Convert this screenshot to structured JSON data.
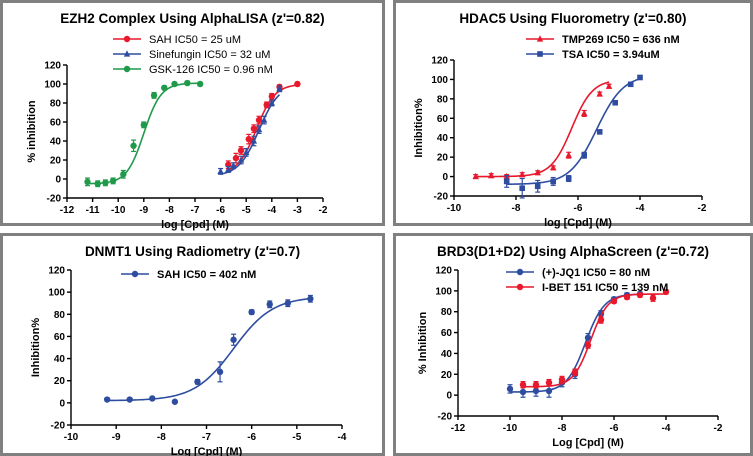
{
  "chart_data": [
    {
      "type": "line",
      "title": "EZH2 Complex Using AlphaLISA (z'=0.82)",
      "xlabel": "log [Cpd] (M)",
      "ylabel": "% inhibition",
      "xlim": [
        -12,
        -2
      ],
      "ylim": [
        -20,
        120
      ],
      "xticks": [
        -12,
        -11,
        -10,
        -9,
        -8,
        -7,
        -6,
        -5,
        -4,
        -3,
        -2
      ],
      "yticks": [
        -20,
        0,
        20,
        40,
        60,
        80,
        100,
        120
      ],
      "legend_bold": false,
      "legend_position": "top",
      "series": [
        {
          "name": "SAH IC50 = 25 uM",
          "color": "#e8192c",
          "marker": "circle",
          "x": [
            -5.7,
            -5.4,
            -5.2,
            -4.9,
            -4.7,
            -4.5,
            -4.2,
            -4.0,
            -3.7,
            -3.0
          ],
          "y": [
            15,
            22,
            30,
            42,
            53,
            62,
            78,
            87,
            97,
            100
          ],
          "err": [
            4,
            5,
            4,
            5,
            4,
            4,
            3,
            3,
            2,
            2
          ],
          "fit": {
            "ic50_log": -4.6,
            "hill": 1.2,
            "bottom": 5,
            "top": 100
          }
        },
        {
          "name": "Sinefungin IC50 = 32 uM",
          "color": "#2e4da0",
          "marker": "triangle",
          "x": [
            -6.0,
            -5.7,
            -5.5,
            -5.2,
            -5.0,
            -4.7,
            -4.5,
            -4.3,
            -4.0,
            -3.7
          ],
          "y": [
            8,
            10,
            14,
            20,
            28,
            40,
            52,
            62,
            80,
            95
          ],
          "err": [
            3,
            3,
            3,
            4,
            4,
            5,
            4,
            4,
            3,
            3
          ],
          "fit": {
            "ic50_log": -4.5,
            "hill": 1.1,
            "bottom": 3,
            "top": 100
          }
        },
        {
          "name": "GSK-126 IC50 = 0.96 nM",
          "color": "#1f9a4a",
          "marker": "circle",
          "x": [
            -11.2,
            -10.8,
            -10.5,
            -10.2,
            -9.8,
            -9.4,
            -9.0,
            -8.6,
            -8.2,
            -7.8,
            -7.3,
            -6.8
          ],
          "y": [
            -3,
            -5,
            -4,
            -2,
            5,
            35,
            57,
            88,
            96,
            100,
            101,
            100
          ],
          "err": [
            4,
            3,
            3,
            3,
            4,
            6,
            3,
            3,
            2,
            2,
            2,
            2
          ],
          "fit": {
            "ic50_log": -9.0,
            "hill": 1.3,
            "bottom": -5,
            "top": 101
          }
        }
      ]
    },
    {
      "type": "line",
      "title": "HDAC5 Using Fluorometry (z'=0.80)",
      "xlabel": "log [Cpd] (M)",
      "ylabel": "Inhibition%",
      "xlim": [
        -10,
        -2
      ],
      "ylim": [
        -20,
        120
      ],
      "xticks": [
        -10,
        -8,
        -6,
        -4,
        -2
      ],
      "yticks": [
        -20,
        0,
        20,
        40,
        60,
        80,
        100,
        120
      ],
      "legend_bold": true,
      "legend_position": "top",
      "series": [
        {
          "name": "TMP269 IC50 = 636 nM",
          "color": "#e8192c",
          "marker": "triangle",
          "x": [
            -9.3,
            -8.8,
            -8.3,
            -7.8,
            -7.3,
            -6.8,
            -6.3,
            -5.8,
            -5.3,
            -5.0
          ],
          "y": [
            0,
            1,
            0,
            2,
            4,
            9,
            22,
            65,
            85,
            93
          ],
          "err": [
            2,
            2,
            2,
            2,
            2,
            2,
            3,
            3,
            2,
            2
          ],
          "fit": {
            "ic50_log": -6.2,
            "hill": 1.3,
            "bottom": 0,
            "top": 100
          }
        },
        {
          "name": "TSA IC50 = 3.94uM",
          "color": "#2e4da0",
          "marker": "square",
          "x": [
            -8.3,
            -7.8,
            -7.3,
            -6.8,
            -6.3,
            -5.8,
            -5.3,
            -4.8,
            -4.3,
            -4.0
          ],
          "y": [
            -5,
            -12,
            -10,
            -5,
            -2,
            22,
            46,
            76,
            95,
            102
          ],
          "err": [
            6,
            10,
            6,
            4,
            3,
            3,
            2,
            2,
            2,
            2
          ],
          "fit": {
            "ic50_log": -5.4,
            "hill": 1.0,
            "bottom": -8,
            "top": 105
          }
        }
      ]
    },
    {
      "type": "line",
      "title": "DNMT1 Using Radiometry (z'=0.7)",
      "xlabel": "Log [Cpd] (M)",
      "ylabel": "Inhibition%",
      "xlim": [
        -10,
        -4
      ],
      "ylim": [
        -20,
        120
      ],
      "xticks": [
        -10,
        -9,
        -8,
        -7,
        -6,
        -5,
        -4
      ],
      "yticks": [
        -20,
        0,
        20,
        40,
        60,
        80,
        100,
        120
      ],
      "legend_bold": true,
      "legend_position": "top",
      "series": [
        {
          "name": "SAH IC50 = 402 nM",
          "color": "#2e4da0",
          "marker": "circle",
          "x": [
            -9.2,
            -8.7,
            -8.2,
            -7.7,
            -7.2,
            -6.7,
            -6.4,
            -6.0,
            -5.6,
            -5.2,
            -4.7
          ],
          "y": [
            3,
            3,
            4,
            1,
            19,
            28,
            57,
            82,
            89,
            90,
            94
          ],
          "err": [
            1,
            1,
            1,
            1,
            2,
            9,
            5,
            2,
            3,
            3,
            3
          ],
          "fit": {
            "ic50_log": -6.4,
            "hill": 1.0,
            "bottom": 2,
            "top": 96
          }
        }
      ]
    },
    {
      "type": "line",
      "title": "BRD3(D1+D2) Using AlphaScreen (z'=0.72)",
      "xlabel": "Log [Cpd] (M)",
      "ylabel": "% Inhibition",
      "xlim": [
        -12,
        -2
      ],
      "ylim": [
        -20,
        120
      ],
      "xticks": [
        -12,
        -10,
        -8,
        -6,
        -4,
        -2
      ],
      "yticks": [
        -20,
        0,
        20,
        40,
        60,
        80,
        100,
        120
      ],
      "legend_bold": true,
      "legend_position": "top",
      "series": [
        {
          "name": "(+)-JQ1 IC50 = 80 nM",
          "color": "#2e4da0",
          "marker": "circle",
          "x": [
            -10.0,
            -9.5,
            -9.0,
            -8.5,
            -8.0,
            -7.5,
            -7.0,
            -6.5,
            -6.0,
            -5.5,
            -5.0
          ],
          "y": [
            6,
            3,
            4,
            4,
            12,
            20,
            55,
            78,
            92,
            96,
            97
          ],
          "err": [
            4,
            5,
            5,
            6,
            4,
            4,
            4,
            3,
            2,
            2,
            2
          ],
          "fit": {
            "ic50_log": -7.1,
            "hill": 1.2,
            "bottom": 3,
            "top": 97
          }
        },
        {
          "name": "I-BET 151 IC50 = 139 nM",
          "color": "#e8192c",
          "marker": "circle",
          "x": [
            -9.5,
            -9.0,
            -8.5,
            -8.0,
            -7.5,
            -7.0,
            -6.5,
            -6.0,
            -5.5,
            -5.0,
            -4.5,
            -4.0
          ],
          "y": [
            10,
            10,
            12,
            15,
            22,
            48,
            72,
            90,
            94,
            96,
            93,
            99
          ],
          "err": [
            3,
            3,
            3,
            3,
            3,
            3,
            3,
            2,
            2,
            2,
            3,
            2
          ],
          "fit": {
            "ic50_log": -6.9,
            "hill": 1.3,
            "bottom": 8,
            "top": 97
          }
        }
      ]
    }
  ]
}
